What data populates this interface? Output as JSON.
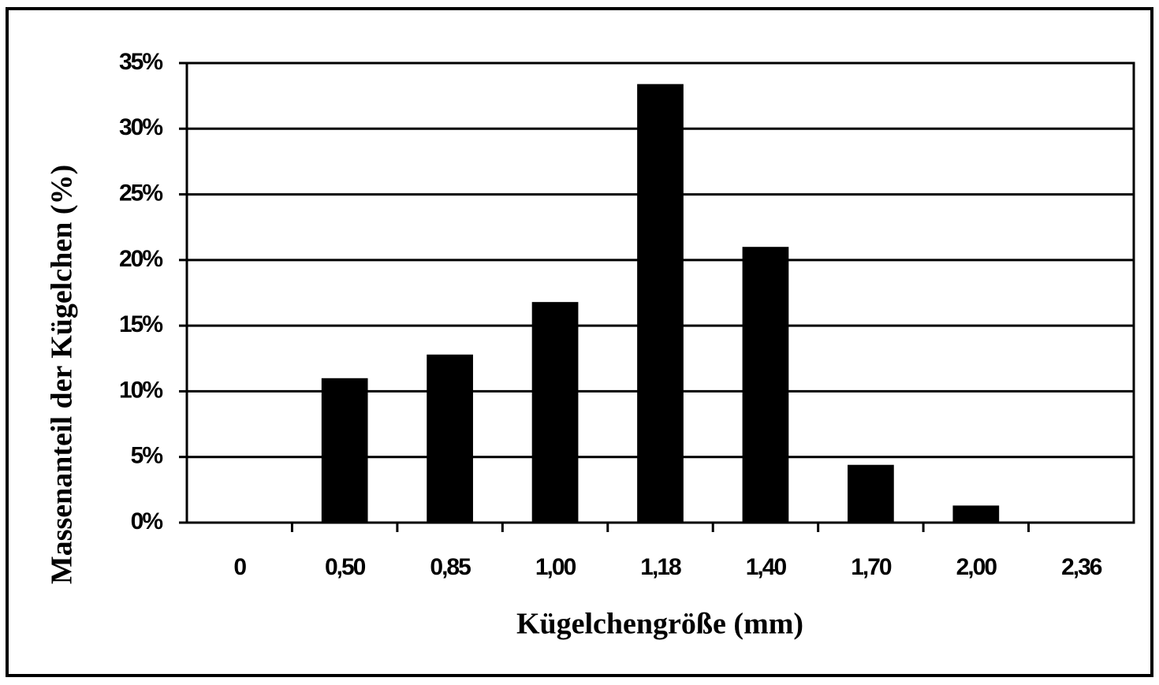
{
  "chart_data": {
    "type": "bar",
    "x_label": "Kügelchengröße (mm)",
    "y_label": "Massenanteil der Kügelchen  (%)",
    "categories": [
      "0",
      "0,50",
      "0,85",
      "1,00",
      "1,18",
      "1,40",
      "1,70",
      "2,00",
      "2,36"
    ],
    "values": [
      0,
      11,
      12.8,
      16.8,
      33.4,
      21,
      4.4,
      1.3,
      0
    ],
    "color": "#000000",
    "ylim": [
      0,
      35
    ],
    "yticks": [
      {
        "value": 0,
        "label": "0%"
      },
      {
        "value": 5,
        "label": "5%"
      },
      {
        "value": 10,
        "label": "10%"
      },
      {
        "value": 15,
        "label": "15%"
      },
      {
        "value": 20,
        "label": "20%"
      },
      {
        "value": 25,
        "label": "25%"
      },
      {
        "value": 30,
        "label": "30%"
      },
      {
        "value": 35,
        "label": "35%"
      }
    ],
    "grid": true
  }
}
